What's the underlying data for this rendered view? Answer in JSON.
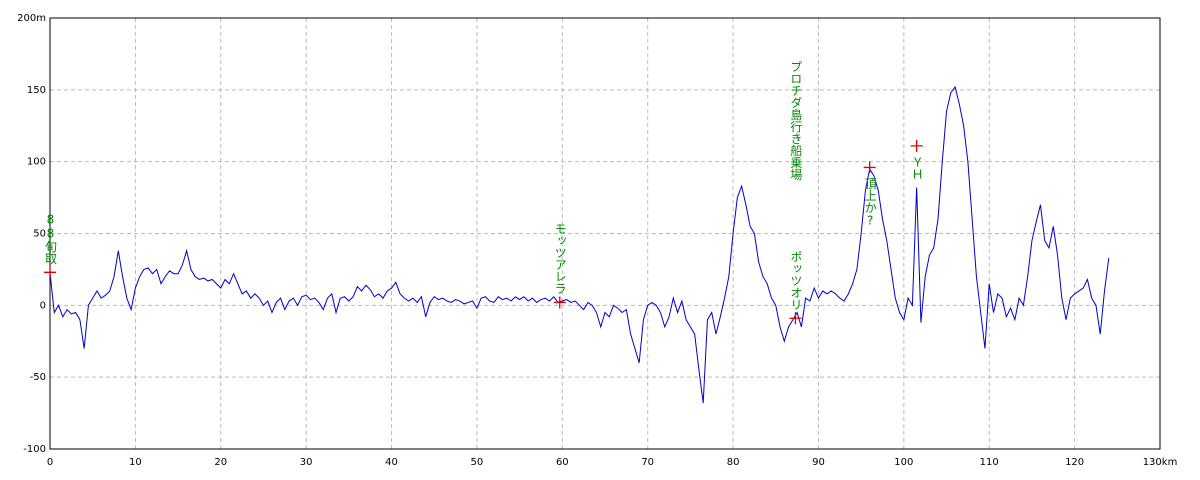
{
  "chart_data": {
    "type": "line",
    "xlim": [
      0,
      130
    ],
    "ylim": [
      -100,
      200
    ],
    "xticks": [
      0,
      10,
      20,
      30,
      40,
      50,
      60,
      70,
      80,
      90,
      100,
      110,
      120,
      {
        "value": 130,
        "label": "130km"
      }
    ],
    "yticks": [
      -100,
      -50,
      0,
      50,
      100,
      150,
      {
        "value": 200,
        "label": "200m"
      }
    ],
    "grid": true,
    "series": [
      {
        "color": "#0000cc",
        "x": [
          0,
          0.5,
          1,
          1.5,
          2,
          2.5,
          3,
          3.5,
          4,
          4.5,
          5,
          5.5,
          6,
          6.5,
          7,
          7.5,
          8,
          8.5,
          9,
          9.5,
          10,
          10.5,
          11,
          11.5,
          12,
          12.5,
          13,
          13.5,
          14,
          14.5,
          15,
          15.5,
          16,
          16.5,
          17,
          17.5,
          18,
          18.5,
          19,
          19.5,
          20,
          20.5,
          21,
          21.5,
          22,
          22.5,
          23,
          23.5,
          24,
          24.5,
          25,
          25.5,
          26,
          26.5,
          27,
          27.5,
          28,
          28.5,
          29,
          29.5,
          30,
          30.5,
          31,
          31.5,
          32,
          32.5,
          33,
          33.5,
          34,
          34.5,
          35,
          35.5,
          36,
          36.5,
          37,
          37.5,
          38,
          38.5,
          39,
          39.5,
          40,
          40.5,
          41,
          41.5,
          42,
          42.5,
          43,
          43.5,
          44,
          44.5,
          45,
          45.5,
          46,
          46.5,
          47,
          47.5,
          48,
          48.5,
          49,
          49.5,
          50,
          50.5,
          51,
          51.5,
          52,
          52.5,
          53,
          53.5,
          54,
          54.5,
          55,
          55.5,
          56,
          56.5,
          57,
          57.5,
          58,
          58.5,
          59,
          59.5,
          60,
          60.5,
          61,
          61.5,
          62,
          62.5,
          63,
          63.5,
          64,
          64.5,
          65,
          65.5,
          66,
          66.5,
          67,
          67.5,
          68,
          68.5,
          69,
          69.5,
          70,
          70.5,
          71,
          71.5,
          72,
          72.5,
          73,
          73.5,
          74,
          74.5,
          75,
          75.5,
          76,
          76.5,
          77,
          77.5,
          78,
          78.5,
          79,
          79.5,
          80,
          80.5,
          81,
          81.5,
          82,
          82.5,
          83,
          83.5,
          84,
          84.5,
          85,
          85.5,
          86,
          86.5,
          87,
          87.5,
          88,
          88.5,
          89,
          89.5,
          90,
          90.5,
          91,
          91.5,
          92,
          92.5,
          93,
          93.5,
          94,
          94.5,
          95,
          95.5,
          96,
          96.5,
          97,
          97.5,
          98,
          98.5,
          99,
          99.5,
          100,
          100.5,
          101,
          101.5,
          102,
          102.5,
          103,
          103.5,
          104,
          104.5,
          105,
          105.5,
          106,
          106.5,
          107,
          107.5,
          108,
          108.5,
          109,
          109.5,
          110,
          110.5,
          111,
          111.5,
          112,
          112.5,
          113,
          113.5,
          114,
          114.5,
          115,
          115.5,
          116,
          116.5,
          117,
          117.5,
          118,
          118.5,
          119,
          119.5,
          120,
          120.5,
          121,
          121.5,
          122,
          122.5,
          123,
          123.5,
          124
        ],
        "values": [
          23,
          -5,
          0,
          -8,
          -3,
          -6,
          -5,
          -10,
          -30,
          0,
          5,
          10,
          5,
          7,
          10,
          20,
          38,
          20,
          5,
          -3,
          12,
          20,
          25,
          26,
          22,
          25,
          15,
          20,
          24,
          22,
          22,
          28,
          38,
          25,
          20,
          18,
          19,
          17,
          18,
          15,
          12,
          18,
          15,
          22,
          15,
          8,
          10,
          5,
          8,
          5,
          0,
          3,
          -5,
          2,
          5,
          -3,
          3,
          5,
          0,
          6,
          7,
          4,
          5,
          2,
          -3,
          5,
          8,
          -5,
          5,
          6,
          3,
          6,
          13,
          10,
          14,
          11,
          6,
          8,
          5,
          10,
          12,
          16,
          8,
          5,
          3,
          5,
          2,
          6,
          -8,
          2,
          6,
          4,
          5,
          3,
          2,
          4,
          3,
          1,
          2,
          3,
          -2,
          5,
          6,
          3,
          2,
          6,
          4,
          5,
          3,
          6,
          4,
          6,
          3,
          5,
          2,
          4,
          5,
          3,
          6,
          2,
          3,
          4,
          2,
          3,
          0,
          -3,
          2,
          0,
          -5,
          -15,
          -5,
          -8,
          0,
          -2,
          -5,
          -3,
          -20,
          -30,
          -40,
          -10,
          0,
          2,
          0,
          -5,
          -15,
          -8,
          5,
          -5,
          3,
          -10,
          -15,
          -20,
          -45,
          -68,
          -10,
          -5,
          -20,
          -8,
          5,
          20,
          50,
          75,
          83,
          70,
          55,
          50,
          30,
          20,
          15,
          5,
          0,
          -15,
          -25,
          -15,
          -10,
          -5,
          -15,
          5,
          3,
          12,
          5,
          10,
          8,
          10,
          8,
          5,
          3,
          8,
          15,
          25,
          50,
          80,
          95,
          90,
          80,
          60,
          45,
          25,
          5,
          -5,
          -10,
          5,
          0,
          82,
          -12,
          20,
          35,
          40,
          60,
          100,
          135,
          148,
          152,
          140,
          125,
          100,
          60,
          20,
          -5,
          -30,
          15,
          -5,
          8,
          5,
          -8,
          -2,
          -10,
          5,
          0,
          20,
          45,
          58,
          70,
          45,
          40,
          55,
          35,
          5,
          -10,
          5,
          8,
          10,
          12,
          18,
          5,
          0,
          -20,
          10,
          33
        ]
      }
    ],
    "marker_color": "#e00000",
    "label_color": "#008000",
    "markers": [
      {
        "x": 0,
        "y": 23,
        "labels": [
          "88旬取"
        ],
        "label_side": "above"
      },
      {
        "x": 59.7,
        "y": 2,
        "labels": [
          "モッツアレラ"
        ],
        "label_side": "above"
      },
      {
        "x": 87.3,
        "y": -9,
        "labels": [
          "プロチダ島行き船乗場",
          "ポッツオリ"
        ],
        "label_side": "above"
      },
      {
        "x": 96,
        "y": 96,
        "labels": [
          "頂上か?"
        ],
        "label_side": "below"
      },
      {
        "x": 101.5,
        "y": 111,
        "labels": [
          "ＹＨ"
        ],
        "label_side": "below"
      }
    ]
  }
}
